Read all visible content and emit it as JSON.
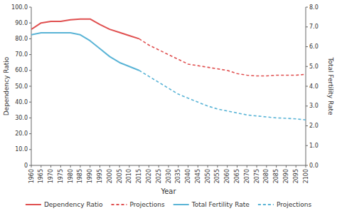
{
  "chart_data": {
    "type": "line",
    "xlabel": "Year",
    "ylabel": "Dependency Ratio",
    "y2label": "Total Fertility Rate",
    "xlim": [
      1960,
      2100
    ],
    "xticks": [
      1960,
      1965,
      1970,
      1975,
      1980,
      1985,
      1990,
      1995,
      2000,
      2005,
      2010,
      2015,
      2020,
      2025,
      2030,
      2035,
      2040,
      2045,
      2050,
      2055,
      2060,
      2065,
      2070,
      2075,
      2080,
      2085,
      2090,
      2095,
      2100
    ],
    "ylim": [
      0,
      100
    ],
    "yticks": [
      0,
      {
        "value": 10,
        "label": "10.0"
      },
      {
        "value": 20,
        "label": "20.0"
      },
      {
        "value": 30,
        "label": "30.0"
      },
      {
        "value": 40,
        "label": "40.0"
      },
      {
        "value": 50,
        "label": "50.0"
      },
      {
        "value": 60,
        "label": "60.0"
      },
      {
        "value": 70,
        "label": "70.0"
      },
      {
        "value": 80,
        "label": "80.0"
      },
      {
        "value": 90,
        "label": "90.0"
      },
      {
        "value": 100,
        "label": "100.0"
      }
    ],
    "y2lim": [
      0.0,
      8.0
    ],
    "y2ticks": [
      {
        "value": 0,
        "label": "0.0"
      },
      {
        "value": 1,
        "label": "1.0"
      },
      {
        "value": 2,
        "label": "2.0"
      },
      {
        "value": 3,
        "label": "3.0"
      },
      {
        "value": 4,
        "label": "4.0"
      },
      {
        "value": 5,
        "label": "5.0"
      },
      {
        "value": 6,
        "label": "6.0"
      },
      {
        "value": 7,
        "label": "7.0"
      },
      {
        "value": 8,
        "label": "8.0"
      }
    ],
    "grid": false,
    "legend": "bottom",
    "series": [
      {
        "name": "Dependency Ratio",
        "color": "#e05050",
        "line_style": "solid",
        "x": [
          1960,
          1965,
          1970,
          1975,
          1980,
          1985,
          1990,
          1995,
          2000,
          2005,
          2010,
          2015
        ],
        "values": [
          86,
          90,
          91,
          91,
          92,
          92.5,
          92.5,
          89,
          86,
          84,
          82,
          80
        ]
      },
      {
        "name": "Projections",
        "color": "#e05050",
        "line_style": "dashed",
        "x": [
          2015,
          2020,
          2025,
          2030,
          2035,
          2040,
          2045,
          2050,
          2055,
          2060,
          2065,
          2070,
          2075,
          2080,
          2085,
          2090,
          2095,
          2100
        ],
        "values": [
          80,
          76,
          73,
          70,
          67,
          64,
          63,
          62,
          61,
          60,
          58,
          57,
          56.5,
          56.5,
          57,
          57,
          57,
          57.5
        ]
      },
      {
        "name": "Total Fertility Rate",
        "color": "#5ab4d6",
        "line_style": "solid",
        "axis": "y2",
        "x": [
          1960,
          1965,
          1970,
          1975,
          1980,
          1985,
          1990,
          1995,
          2000,
          2005,
          2010,
          2015
        ],
        "values": [
          6.6,
          6.7,
          6.7,
          6.7,
          6.7,
          6.6,
          6.3,
          5.9,
          5.5,
          5.2,
          5.0,
          4.8
        ]
      },
      {
        "name": "Projections",
        "color": "#5ab4d6",
        "line_style": "dashed",
        "axis": "y2",
        "x": [
          2015,
          2020,
          2025,
          2030,
          2035,
          2040,
          2045,
          2050,
          2055,
          2060,
          2065,
          2070,
          2075,
          2080,
          2085,
          2090,
          2095,
          2100
        ],
        "values": [
          4.8,
          4.5,
          4.2,
          3.9,
          3.6,
          3.4,
          3.2,
          3.0,
          2.85,
          2.75,
          2.65,
          2.55,
          2.5,
          2.45,
          2.4,
          2.38,
          2.35,
          2.3
        ]
      }
    ]
  }
}
